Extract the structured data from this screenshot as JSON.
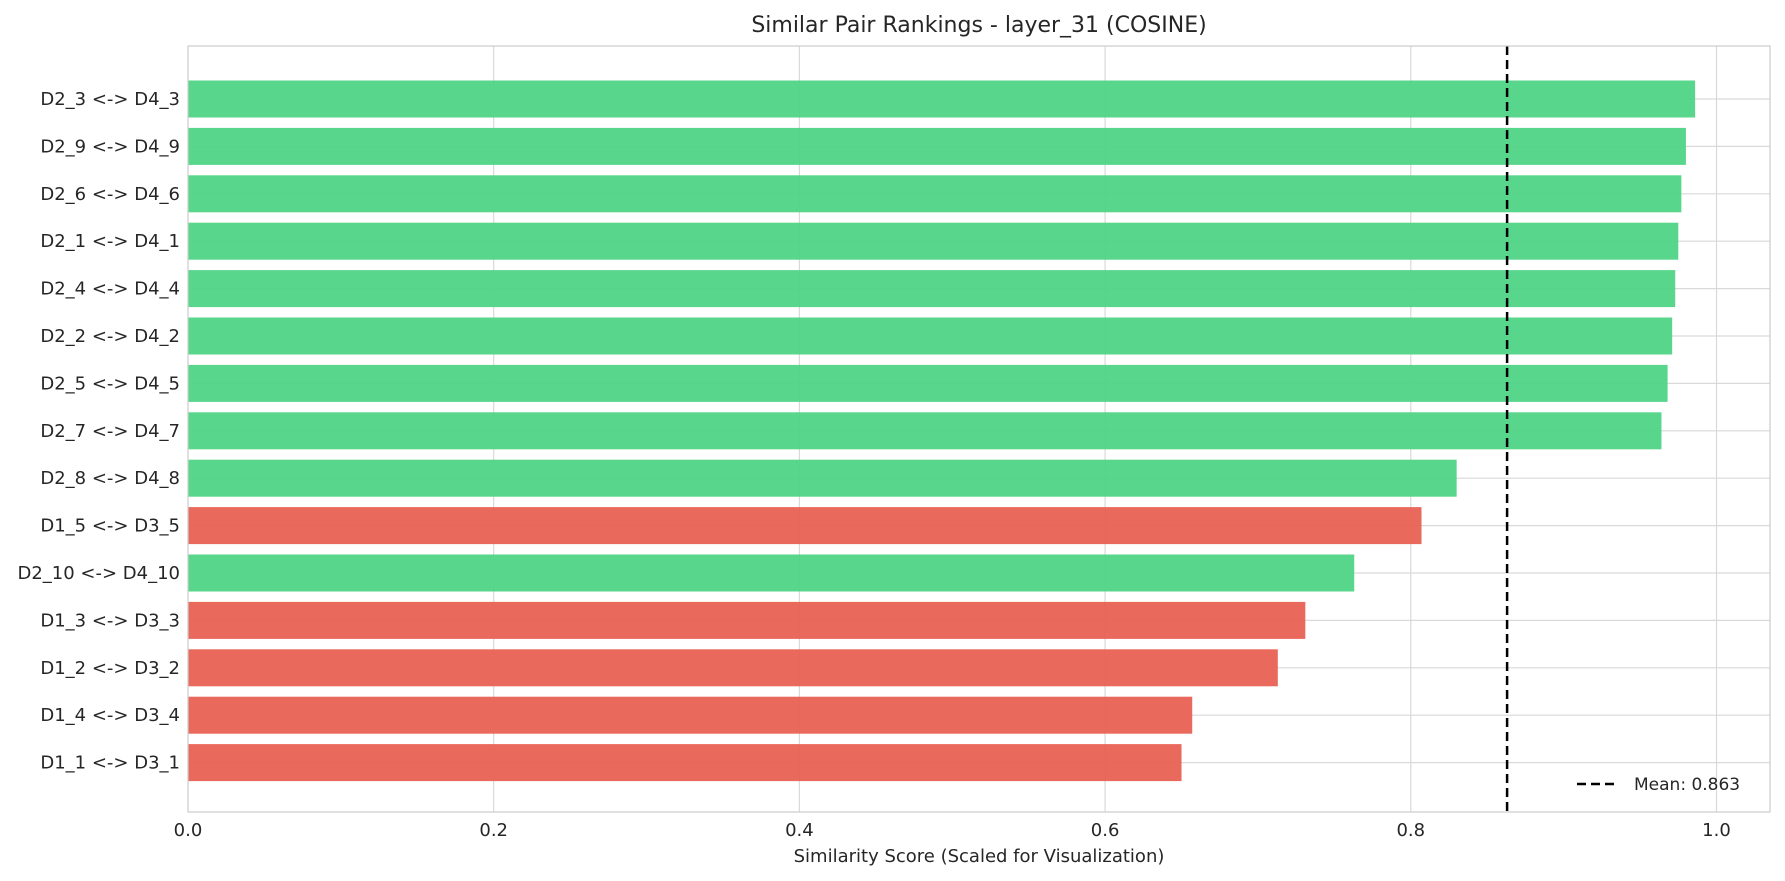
{
  "chart_data": {
    "type": "bar",
    "orientation": "horizontal",
    "title": "Similar Pair Rankings - layer_31 (COSINE)",
    "xlabel": "Similarity Score (Scaled for Visualization)",
    "ylabel": "",
    "xlim": [
      0.0,
      1.035
    ],
    "xticks": [
      "0.0",
      "0.2",
      "0.4",
      "0.6",
      "0.8",
      "1.0"
    ],
    "xtick_values": [
      0.0,
      0.2,
      0.4,
      0.6,
      0.8,
      1.0
    ],
    "grid": true,
    "categories": [
      "D2_3 <-> D4_3",
      "D2_9 <-> D4_9",
      "D2_6 <-> D4_6",
      "D2_1 <-> D4_1",
      "D2_4 <-> D4_4",
      "D2_2 <-> D4_2",
      "D2_5 <-> D4_5",
      "D2_7 <-> D4_7",
      "D2_8 <-> D4_8",
      "D1_5 <-> D3_5",
      "D2_10 <-> D4_10",
      "D1_3 <-> D3_3",
      "D1_2 <-> D3_2",
      "D1_4 <-> D3_4",
      "D1_1 <-> D3_1"
    ],
    "values": [
      0.986,
      0.98,
      0.977,
      0.975,
      0.973,
      0.971,
      0.968,
      0.964,
      0.83,
      0.807,
      0.763,
      0.731,
      0.713,
      0.657,
      0.65
    ],
    "bar_groups": [
      "green",
      "green",
      "green",
      "green",
      "green",
      "green",
      "green",
      "green",
      "green",
      "red",
      "green",
      "red",
      "red",
      "red",
      "red"
    ],
    "colors": {
      "green": "#4fd486",
      "red": "#e96154"
    },
    "mean_line": {
      "value": 0.863,
      "label": "Mean: 0.863"
    },
    "legend_position": "bottom-right"
  }
}
